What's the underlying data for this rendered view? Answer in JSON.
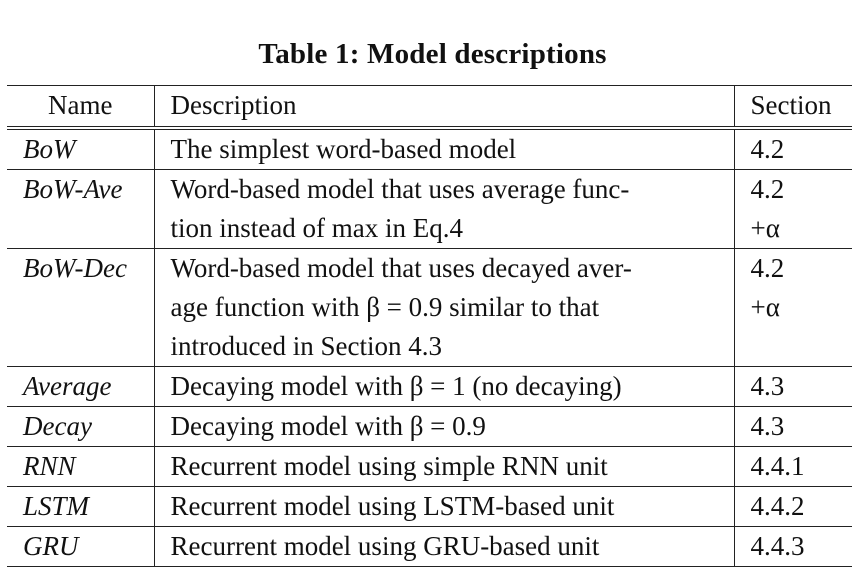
{
  "title": "Table 1: Model descriptions",
  "columns": {
    "name": "Name",
    "description": "Description",
    "section": "Section"
  },
  "rows": [
    {
      "name": "BoW",
      "description_lines": [
        "The simplest word-based model"
      ],
      "section_lines": [
        "4.2"
      ]
    },
    {
      "name": "BoW-Ave",
      "description_lines": [
        "Word-based model that uses average func-",
        "tion instead of max in Eq.4"
      ],
      "section_lines": [
        "4.2",
        "+α"
      ]
    },
    {
      "name": "BoW-Dec",
      "description_lines": [
        "Word-based model that uses decayed aver-",
        "age function with β = 0.9 similar to that",
        "introduced in Section 4.3"
      ],
      "section_lines": [
        "4.2",
        "+α"
      ]
    },
    {
      "name": "Average",
      "description_lines": [
        "Decaying model with β = 1 (no decaying)"
      ],
      "section_lines": [
        "4.3"
      ]
    },
    {
      "name": "Decay",
      "description_lines": [
        "Decaying model with β = 0.9"
      ],
      "section_lines": [
        "4.3"
      ]
    },
    {
      "name": "RNN",
      "description_lines": [
        "Recurrent model using simple RNN unit"
      ],
      "section_lines": [
        "4.4.1"
      ]
    },
    {
      "name": "LSTM",
      "description_lines": [
        "Recurrent model using LSTM-based unit"
      ],
      "section_lines": [
        "4.4.2"
      ]
    },
    {
      "name": "GRU",
      "description_lines": [
        "Recurrent model using GRU-based unit"
      ],
      "section_lines": [
        "4.4.3"
      ]
    }
  ]
}
